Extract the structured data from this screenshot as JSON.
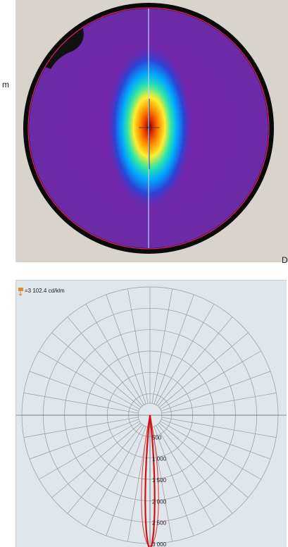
{
  "top_panel": {
    "left_letter": "m",
    "right_letter": "D"
  },
  "chart_data": {
    "type": "polar",
    "max_label": "=3 102.4 cd/klm",
    "radial_ticks": [
      "500",
      "1 000",
      "1 500",
      "2 000",
      "2 500",
      "3 000"
    ],
    "rmax": 3000,
    "colors": {
      "inner_curve": "#d01010",
      "outer_curve": "#e04040",
      "grid": "#9a9a9a",
      "background": "#dfe6ec"
    }
  }
}
